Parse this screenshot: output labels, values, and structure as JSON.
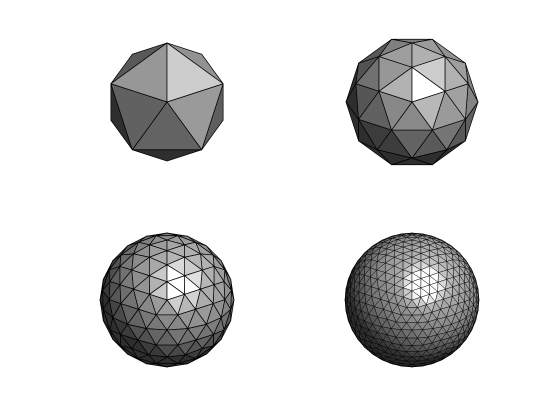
{
  "scene": {
    "background": "#ffffff",
    "shading": {
      "highlight": "#ffffff",
      "mid": "#8a8a8a",
      "dark": "#3a3a3a",
      "edge": "#000000"
    },
    "meshes": [
      {
        "name": "icosahedron",
        "subdivision_level": 0,
        "faces": 20
      },
      {
        "name": "geodesic-sphere-level-1",
        "subdivision_level": 1,
        "faces": 80
      },
      {
        "name": "geodesic-sphere-level-2",
        "subdivision_level": 2,
        "faces": 320
      },
      {
        "name": "geodesic-sphere-level-3",
        "subdivision_level": 3,
        "faces": 1280
      }
    ]
  }
}
